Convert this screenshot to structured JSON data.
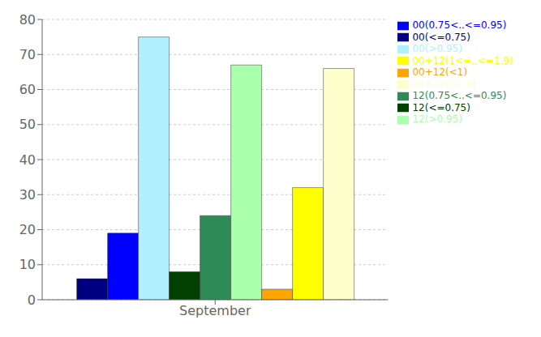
{
  "chart_data": {
    "type": "bar",
    "categories": [
      "September"
    ],
    "series": [
      {
        "name": "00(<=0.75)",
        "color": "#000080",
        "values": [
          6
        ]
      },
      {
        "name": "00(0.75<..<=0.95)",
        "color": "#0000FF",
        "values": [
          19
        ]
      },
      {
        "name": "00(>0.95)",
        "color": "#B0F0FF",
        "values": [
          75
        ]
      },
      {
        "name": "12(<=0.75)",
        "color": "#004000",
        "values": [
          8
        ]
      },
      {
        "name": "12(0.75<..<=0.95)",
        "color": "#2E8B57",
        "values": [
          24
        ]
      },
      {
        "name": "12(>0.95)",
        "color": "#AAFFAA",
        "values": [
          67
        ]
      },
      {
        "name": "00+12(<1)",
        "color": "#FFA500",
        "values": [
          3
        ]
      },
      {
        "name": "00+12(1<=..<=1.9)",
        "color": "#FFFF00",
        "values": [
          32
        ]
      },
      {
        "name": "00+12(>1.9)",
        "color": "#FFFFCC",
        "values": [
          66
        ]
      }
    ],
    "ylim": [
      0,
      80
    ],
    "yticks": [
      0,
      10,
      20,
      30,
      40,
      50,
      60,
      70,
      80
    ],
    "grid": true,
    "legend": "upper right"
  }
}
